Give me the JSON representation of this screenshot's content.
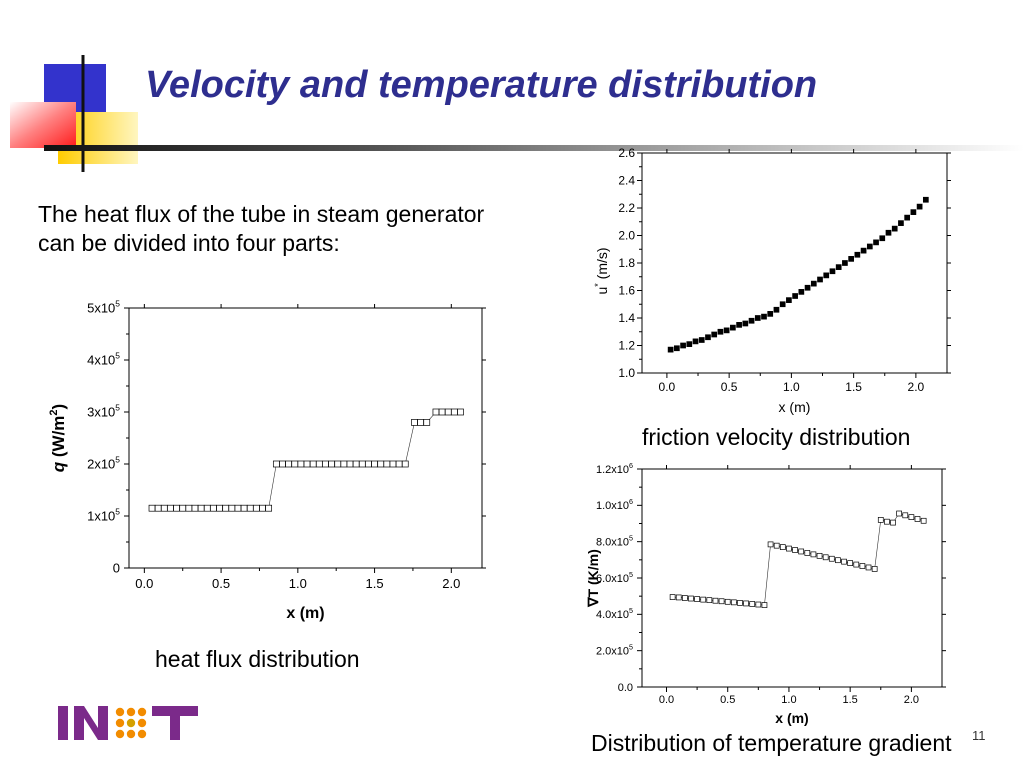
{
  "slide": {
    "title": "Velocity and temperature distribution",
    "intro_line1": "The heat flux of the tube in steam generator",
    "intro_line2": "can be divided into four parts:",
    "page_number": "11",
    "logo_text": "INET",
    "decor_colors": {
      "blue": "#3333cc",
      "yellow": "#ffd700",
      "red": "#ff3333",
      "title": "#2e2e8f"
    }
  },
  "chart_data": [
    {
      "id": "heat-flux",
      "type": "scatter",
      "caption": "heat flux distribution",
      "xlabel": "x (m)",
      "ylabel_italic": "q",
      "ylabel_rest": " (W/m",
      "ylabel_sup": "2",
      "ylabel_close": ")",
      "xlim": [
        -0.1,
        2.2
      ],
      "ylim": [
        0,
        500000
      ],
      "xticks": [
        0.0,
        0.5,
        1.0,
        1.5,
        2.0
      ],
      "xtick_labels": [
        "0.0",
        "0.5",
        "1.0",
        "1.5",
        "2.0"
      ],
      "yticks": [
        0,
        100000,
        200000,
        300000,
        400000,
        500000
      ],
      "ytick_labels": [
        {
          "base": "0",
          "sup": ""
        },
        {
          "base": "1x10",
          "sup": "5"
        },
        {
          "base": "2x10",
          "sup": "5"
        },
        {
          "base": "3x10",
          "sup": "5"
        },
        {
          "base": "4x10",
          "sup": "5"
        },
        {
          "base": "5x10",
          "sup": "5"
        }
      ],
      "marker": "open-square",
      "series": [
        {
          "x": [
            0.05,
            0.09,
            0.13,
            0.17,
            0.21,
            0.25,
            0.29,
            0.33,
            0.37,
            0.41,
            0.45,
            0.49,
            0.53,
            0.57,
            0.61,
            0.65,
            0.69,
            0.73,
            0.77,
            0.81,
            0.86,
            0.9,
            0.94,
            0.98,
            1.02,
            1.06,
            1.1,
            1.14,
            1.18,
            1.22,
            1.26,
            1.3,
            1.34,
            1.38,
            1.42,
            1.46,
            1.5,
            1.54,
            1.58,
            1.62,
            1.66,
            1.7,
            1.76,
            1.8,
            1.84,
            1.9,
            1.94,
            1.98,
            2.02,
            2.06
          ],
          "y": [
            115000,
            115000,
            115000,
            115000,
            115000,
            115000,
            115000,
            115000,
            115000,
            115000,
            115000,
            115000,
            115000,
            115000,
            115000,
            115000,
            115000,
            115000,
            115000,
            115000,
            200000,
            200000,
            200000,
            200000,
            200000,
            200000,
            200000,
            200000,
            200000,
            200000,
            200000,
            200000,
            200000,
            200000,
            200000,
            200000,
            200000,
            200000,
            200000,
            200000,
            200000,
            200000,
            280000,
            280000,
            280000,
            300000,
            300000,
            300000,
            300000,
            300000
          ]
        }
      ]
    },
    {
      "id": "friction-velocity",
      "type": "scatter",
      "caption": "friction velocity distribution",
      "xlabel": "x (m)",
      "ylabel_base": "u",
      "ylabel_sup": "*",
      "ylabel_rest": " (m/s)",
      "xlim": [
        -0.2,
        2.25
      ],
      "ylim": [
        1.0,
        2.6
      ],
      "xticks": [
        0.0,
        0.5,
        1.0,
        1.5,
        2.0
      ],
      "xtick_labels": [
        "0.0",
        "0.5",
        "1.0",
        "1.5",
        "2.0"
      ],
      "yticks": [
        1.0,
        1.2,
        1.4,
        1.6,
        1.8,
        2.0,
        2.2,
        2.4,
        2.6
      ],
      "ytick_labels": [
        "1.0",
        "1.2",
        "1.4",
        "1.6",
        "1.8",
        "2.0",
        "2.2",
        "2.4",
        "2.6"
      ],
      "marker": "filled-square",
      "series": [
        {
          "x": [
            0.03,
            0.08,
            0.13,
            0.18,
            0.23,
            0.28,
            0.33,
            0.38,
            0.43,
            0.48,
            0.53,
            0.58,
            0.63,
            0.68,
            0.73,
            0.78,
            0.83,
            0.88,
            0.93,
            0.98,
            1.03,
            1.08,
            1.13,
            1.18,
            1.23,
            1.28,
            1.33,
            1.38,
            1.43,
            1.48,
            1.53,
            1.58,
            1.63,
            1.68,
            1.73,
            1.78,
            1.83,
            1.88,
            1.93,
            1.98,
            2.03,
            2.08
          ],
          "y": [
            1.17,
            1.18,
            1.2,
            1.21,
            1.23,
            1.24,
            1.26,
            1.28,
            1.3,
            1.31,
            1.33,
            1.35,
            1.36,
            1.38,
            1.4,
            1.41,
            1.43,
            1.46,
            1.5,
            1.53,
            1.56,
            1.59,
            1.62,
            1.65,
            1.68,
            1.71,
            1.74,
            1.77,
            1.8,
            1.83,
            1.86,
            1.89,
            1.92,
            1.95,
            1.98,
            2.02,
            2.05,
            2.09,
            2.13,
            2.17,
            2.21,
            2.26
          ]
        }
      ]
    },
    {
      "id": "temperature-gradient",
      "type": "scatter",
      "caption": "Distribution of temperature gradient",
      "xlabel": "x (m)",
      "ylabel": "∇T (K/m)",
      "xlim": [
        -0.2,
        2.25
      ],
      "ylim": [
        0,
        1200000
      ],
      "xticks": [
        0.0,
        0.5,
        1.0,
        1.5,
        2.0
      ],
      "xtick_labels": [
        "0.0",
        "0.5",
        "1.0",
        "1.5",
        "2.0"
      ],
      "yticks": [
        0,
        200000,
        400000,
        600000,
        800000,
        1000000,
        1200000
      ],
      "ytick_labels": [
        {
          "base": "0.0",
          "sup": ""
        },
        {
          "base": "2.0x10",
          "sup": "5"
        },
        {
          "base": "4.0x10",
          "sup": "5"
        },
        {
          "base": "6.0x10",
          "sup": "5"
        },
        {
          "base": "8.0x10",
          "sup": "5"
        },
        {
          "base": "1.0x10",
          "sup": "6"
        },
        {
          "base": "1.2x10",
          "sup": "6"
        }
      ],
      "marker": "open-square",
      "series": [
        {
          "x": [
            0.05,
            0.1,
            0.15,
            0.2,
            0.25,
            0.3,
            0.35,
            0.4,
            0.45,
            0.5,
            0.55,
            0.6,
            0.65,
            0.7,
            0.75,
            0.8,
            0.85,
            0.9,
            0.95,
            1.0,
            1.05,
            1.1,
            1.15,
            1.2,
            1.25,
            1.3,
            1.35,
            1.4,
            1.45,
            1.5,
            1.55,
            1.6,
            1.65,
            1.7,
            1.75,
            1.8,
            1.85,
            1.9,
            1.95,
            2.0,
            2.05,
            2.1
          ],
          "y": [
            495000,
            493000,
            490000,
            487000,
            484000,
            481000,
            478000,
            475000,
            472000,
            469000,
            466000,
            463000,
            460000,
            457000,
            454000,
            451000,
            785000,
            778000,
            770000,
            762000,
            754000,
            746000,
            738000,
            730000,
            722000,
            714000,
            706000,
            698000,
            690000,
            682000,
            674000,
            666000,
            658000,
            650000,
            920000,
            910000,
            905000,
            955000,
            945000,
            935000,
            925000,
            915000
          ]
        }
      ]
    }
  ]
}
